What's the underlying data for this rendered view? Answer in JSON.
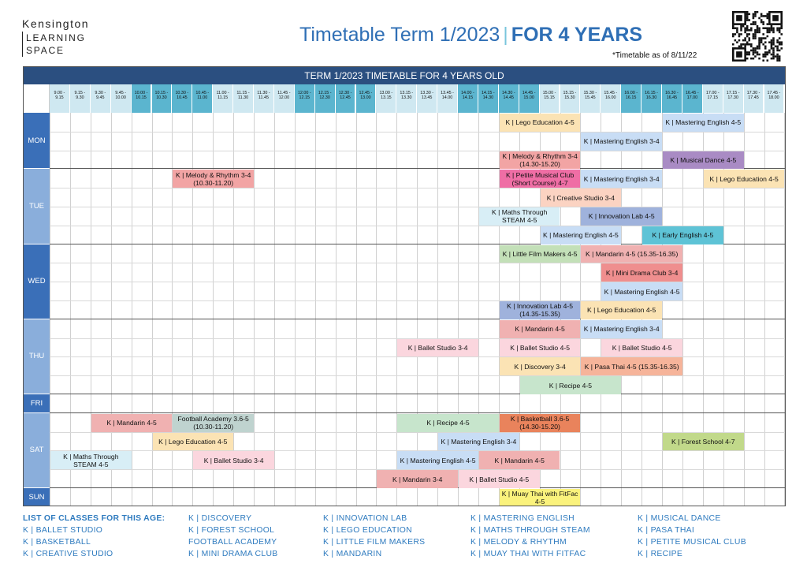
{
  "logo": {
    "line1": "Kensington",
    "line2": "LEARNING",
    "line3": "SPACE"
  },
  "title": {
    "main": "Timetable Term 1/2023",
    "separator": "|",
    "bold": "FOR 4 YEARS"
  },
  "as_of": "*Timetable as of 8/11/22",
  "banner": "TERM 1/2023 TIMETABLE FOR 4 YEARS OLD",
  "time_slots": [
    {
      "start": "9.00 -",
      "end": "9.15"
    },
    {
      "start": "9.15 -",
      "end": "9.30"
    },
    {
      "start": "9.30 -",
      "end": "9.45"
    },
    {
      "start": "9.45 -",
      "end": "10.00"
    },
    {
      "start": "10.00 -",
      "end": "10.15"
    },
    {
      "start": "10.15 -",
      "end": "10.30"
    },
    {
      "start": "10.30 -",
      "end": "10.45"
    },
    {
      "start": "10.45 -",
      "end": "11.00"
    },
    {
      "start": "11.00 -",
      "end": "11.15"
    },
    {
      "start": "11.15 -",
      "end": "11.30"
    },
    {
      "start": "11.30 -",
      "end": "11.45"
    },
    {
      "start": "11.45 -",
      "end": "12.00"
    },
    {
      "start": "12.00 -",
      "end": "12.15"
    },
    {
      "start": "12.15 -",
      "end": "12.30"
    },
    {
      "start": "12.30 -",
      "end": "12.45"
    },
    {
      "start": "12.45 -",
      "end": "13.00"
    },
    {
      "start": "13.00 -",
      "end": "13.15"
    },
    {
      "start": "13.15 -",
      "end": "13.30"
    },
    {
      "start": "13.30 -",
      "end": "13.45"
    },
    {
      "start": "13.45 -",
      "end": "14.00"
    },
    {
      "start": "14.00 -",
      "end": "14.15"
    },
    {
      "start": "14.15 -",
      "end": "14.30"
    },
    {
      "start": "14.30 -",
      "end": "14.45"
    },
    {
      "start": "14.45 -",
      "end": "15.00"
    },
    {
      "start": "15.00 -",
      "end": "15.15"
    },
    {
      "start": "15.15 -",
      "end": "15.30"
    },
    {
      "start": "15.30 -",
      "end": "15.45"
    },
    {
      "start": "15.45 -",
      "end": "16.00"
    },
    {
      "start": "16.00 -",
      "end": "16.15"
    },
    {
      "start": "16.15 -",
      "end": "16.30"
    },
    {
      "start": "16.30 -",
      "end": "16.45"
    },
    {
      "start": "16.45 -",
      "end": "17.00"
    },
    {
      "start": "17.00 -",
      "end": "17.15"
    },
    {
      "start": "17.15 -",
      "end": "17.30"
    },
    {
      "start": "17.30 -",
      "end": "17.45"
    },
    {
      "start": "17.45 -",
      "end": "18.00"
    }
  ],
  "days": [
    {
      "name": "MON",
      "rows": 3
    },
    {
      "name": "TUE",
      "rows": 4
    },
    {
      "name": "WED",
      "rows": 4
    },
    {
      "name": "THU",
      "rows": 4
    },
    {
      "name": "FRI",
      "rows": 1
    },
    {
      "name": "SAT",
      "rows": 4
    },
    {
      "name": "SUN",
      "rows": 1
    }
  ],
  "colors": {
    "banner": "#2b4f80",
    "slot_blue": "#5bb5cf",
    "slot_light": "#cfe8f1",
    "day_dark": "#3a6fb8",
    "day_light": "#8aaedb",
    "lego": "#fbe3b4",
    "english": "#c8ddf5",
    "melody": "#f2a4a4",
    "dance": "#a98bc4",
    "petite": "#ef6ea5",
    "creative": "#fbd3c2",
    "steam": "#d8eef6",
    "innovation": "#9fb2dc",
    "early": "#5ec3d6",
    "film": "#c3e0b8",
    "mandarin": "#f0b1b1",
    "drama": "#ef8e8e",
    "ballet": "#fbd6de",
    "discovery": "#fbe3b4",
    "pasa": "#f6b49a",
    "recipe": "#c7e5cc",
    "football": "#bfd3cf",
    "basketball": "#e9835c",
    "forest": "#c1d98a",
    "muay": "#faf27c"
  },
  "classes": [
    {
      "day": 0,
      "row": 0,
      "start": 22,
      "span": 4,
      "label": "K | Lego Education 4-5",
      "color": "lego"
    },
    {
      "day": 0,
      "row": 0,
      "start": 30,
      "span": 4,
      "label": "K | Mastering English 4-5",
      "color": "english"
    },
    {
      "day": 0,
      "row": 1,
      "start": 26,
      "span": 4,
      "label": "K | Mastering English 3-4",
      "color": "english"
    },
    {
      "day": 0,
      "row": 2,
      "start": 22,
      "span": 4,
      "label": "K | Melody & Rhythm 3-4 (14.30-15.20)",
      "color": "melody"
    },
    {
      "day": 0,
      "row": 2,
      "start": 30,
      "span": 4,
      "label": "K | Musical Dance 4-5",
      "color": "dance"
    },
    {
      "day": 1,
      "row": 0,
      "start": 6,
      "span": 4,
      "label": "K | Melody & Rhythm 3-4 (10.30-11.20)",
      "color": "melody"
    },
    {
      "day": 1,
      "row": 0,
      "start": 22,
      "span": 4,
      "label": "K | Petite Musical Club (Short Course) 4-7",
      "color": "petite"
    },
    {
      "day": 1,
      "row": 0,
      "start": 26,
      "span": 4,
      "label": "K | Mastering English 3-4",
      "color": "english"
    },
    {
      "day": 1,
      "row": 0,
      "start": 32,
      "span": 4,
      "label": "K | Lego Education 4-5",
      "color": "lego"
    },
    {
      "day": 1,
      "row": 1,
      "start": 24,
      "span": 4,
      "label": "K | Creative Studio 3-4",
      "color": "creative"
    },
    {
      "day": 1,
      "row": 2,
      "start": 21,
      "span": 4,
      "label": "K | Maths Through STEAM 4-5",
      "color": "steam"
    },
    {
      "day": 1,
      "row": 2,
      "start": 26,
      "span": 4,
      "label": "K | Innovation Lab 4-5",
      "color": "innovation"
    },
    {
      "day": 1,
      "row": 3,
      "start": 24,
      "span": 4,
      "label": "K | Mastering English 4-5",
      "color": "english"
    },
    {
      "day": 1,
      "row": 3,
      "start": 29,
      "span": 4,
      "label": "K | Early English 4-5",
      "color": "early"
    },
    {
      "day": 2,
      "row": 0,
      "start": 22,
      "span": 4,
      "label": "K | Little Film Makers 4-5",
      "color": "film"
    },
    {
      "day": 2,
      "row": 0,
      "start": 26,
      "span": 5,
      "label": "K | Mandarin 4-5 (15.35-16.35)",
      "color": "mandarin"
    },
    {
      "day": 2,
      "row": 1,
      "start": 27,
      "span": 4,
      "label": "K | Mini Drama Club 3-4",
      "color": "drama"
    },
    {
      "day": 2,
      "row": 2,
      "start": 27,
      "span": 4,
      "label": "K | Mastering English 4-5",
      "color": "english"
    },
    {
      "day": 2,
      "row": 3,
      "start": 22,
      "span": 4,
      "label": "K | Innovation Lab 4-5 (14.35-15.35)",
      "color": "innovation"
    },
    {
      "day": 2,
      "row": 3,
      "start": 26,
      "span": 4,
      "label": "K | Lego Education 4-5",
      "color": "lego"
    },
    {
      "day": 3,
      "row": 0,
      "start": 22,
      "span": 4,
      "label": "K | Mandarin 4-5",
      "color": "mandarin"
    },
    {
      "day": 3,
      "row": 0,
      "start": 26,
      "span": 4,
      "label": "K | Mastering English 3-4",
      "color": "english"
    },
    {
      "day": 3,
      "row": 1,
      "start": 17,
      "span": 4,
      "label": "K | Ballet Studio 3-4",
      "color": "ballet"
    },
    {
      "day": 3,
      "row": 1,
      "start": 22,
      "span": 4,
      "label": "K | Ballet Studio 4-5",
      "color": "ballet"
    },
    {
      "day": 3,
      "row": 1,
      "start": 27,
      "span": 4,
      "label": "K | Ballet Studio 4-5",
      "color": "ballet"
    },
    {
      "day": 3,
      "row": 2,
      "start": 22,
      "span": 4,
      "label": "K | Discovery 3-4",
      "color": "discovery"
    },
    {
      "day": 3,
      "row": 2,
      "start": 26,
      "span": 5,
      "label": "K | Pasa Thai 4-5 (15.35-16.35)",
      "color": "pasa"
    },
    {
      "day": 3,
      "row": 3,
      "start": 23,
      "span": 5,
      "label": "K | Recipe 4-5",
      "color": "recipe"
    },
    {
      "day": 5,
      "row": 0,
      "start": 2,
      "span": 4,
      "label": "K | Mandarin 4-5",
      "color": "mandarin"
    },
    {
      "day": 5,
      "row": 0,
      "start": 6,
      "span": 4,
      "label": "Football Academy 3.6-5 (10.30-11.20)",
      "color": "football"
    },
    {
      "day": 5,
      "row": 0,
      "start": 17,
      "span": 5,
      "label": "K | Recipe 4-5",
      "color": "recipe"
    },
    {
      "day": 5,
      "row": 0,
      "start": 22,
      "span": 4,
      "label": "K | Basketball 3.6-5 (14.30-15.20)",
      "color": "basketball"
    },
    {
      "day": 5,
      "row": 1,
      "start": 5,
      "span": 4,
      "label": "K | Lego Education 4-5",
      "color": "lego"
    },
    {
      "day": 5,
      "row": 1,
      "start": 19,
      "span": 4,
      "label": "K | Mastering English 3-4",
      "color": "english"
    },
    {
      "day": 5,
      "row": 1,
      "start": 30,
      "span": 4,
      "label": "K | Forest School 4-7",
      "color": "forest"
    },
    {
      "day": 5,
      "row": 2,
      "start": 0,
      "span": 4,
      "label": "K | Maths Through STEAM 4-5",
      "color": "steam"
    },
    {
      "day": 5,
      "row": 2,
      "start": 7,
      "span": 4,
      "label": "K | Ballet Studio 3-4",
      "color": "ballet"
    },
    {
      "day": 5,
      "row": 2,
      "start": 17,
      "span": 4,
      "label": "K | Mastering English 4-5",
      "color": "english"
    },
    {
      "day": 5,
      "row": 2,
      "start": 21,
      "span": 4,
      "label": "K | Mandarin 4-5",
      "color": "mandarin"
    },
    {
      "day": 5,
      "row": 3,
      "start": 16,
      "span": 4,
      "label": "K | Mandarin  3-4",
      "color": "mandarin"
    },
    {
      "day": 5,
      "row": 3,
      "start": 20,
      "span": 4,
      "label": "K | Ballet Studio 4-5",
      "color": "ballet"
    },
    {
      "day": 6,
      "row": 0,
      "start": 22,
      "span": 4,
      "label": "K | Muay Thai with FitFac 4-5",
      "color": "muay"
    }
  ],
  "legend": {
    "heading": "LIST OF CLASSES FOR THIS AGE:",
    "columns": [
      [
        "K | BALLET STUDIO",
        "K | BASKETBALL",
        "K | CREATIVE STUDIO"
      ],
      [
        "K | DISCOVERY",
        "K | FOREST SCHOOL",
        "FOOTBALL ACADEMY",
        "K | MINI DRAMA CLUB"
      ],
      [
        "K | INNOVATION LAB",
        "K | LEGO EDUCATION",
        "K | LITTLE FILM MAKERS",
        "K | MANDARIN"
      ],
      [
        "K | MASTERING ENGLISH",
        "K | MATHS THROUGH STEAM",
        "K | MELODY & RHYTHM",
        "K | MUAY THAI WITH FITFAC"
      ],
      [
        "K | MUSICAL DANCE",
        "K | PASA THAI",
        "K | PETITE MUSICAL CLUB",
        "K | RECIPE"
      ]
    ]
  }
}
